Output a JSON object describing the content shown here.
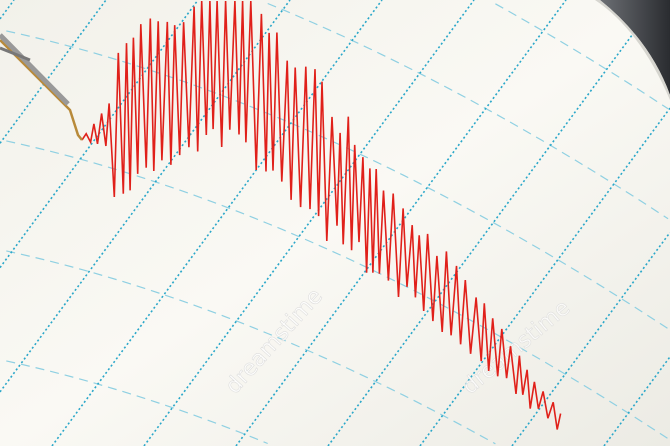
{
  "watermark": {
    "text": "dreamstime"
  },
  "colors": {
    "paper": "#f8f7f1",
    "grid_line": "#2aa7c9",
    "arc_line": "#8fd0e2",
    "trace": "#e0201a",
    "drum": "#3a3d42"
  }
}
